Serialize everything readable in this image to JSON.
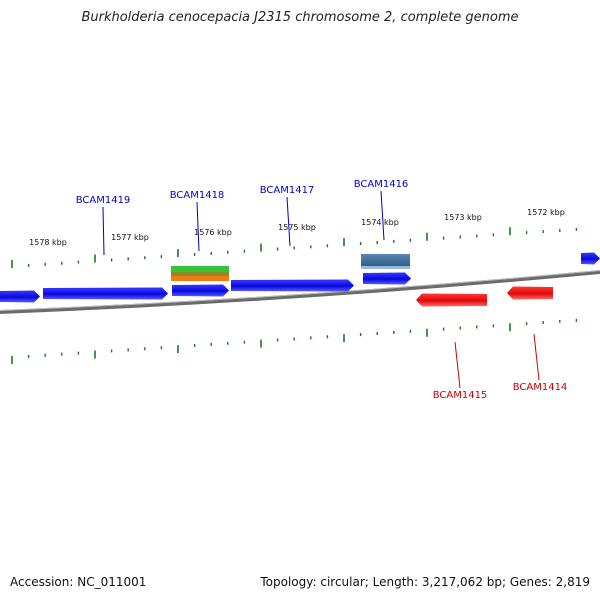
{
  "title": "Burkholderia cenocepacia J2315 chromosome 2, complete genome",
  "footer": {
    "accession": "Accession: NC_011001",
    "stats": "Topology: circular; Length: 3,217,062 bp; Genes: 2,819"
  },
  "colors": {
    "forward_gene": "#0a0ae6",
    "reverse_gene": "#e60a0a",
    "tick": "#1a7a1a",
    "backbone": "#808080",
    "forward_label": "#0000cc",
    "reverse_label": "#cc0000"
  },
  "scale_labels": [
    "1578 kbp",
    "1577 kbp",
    "1576 kbp",
    "1575 kbp",
    "1574 kbp",
    "1573 kbp",
    "1572 kbp"
  ],
  "forward_genes": [
    {
      "label": "",
      "kind": "cds"
    },
    {
      "label": "BCAM1419",
      "kind": "cds"
    },
    {
      "label": "BCAM1418",
      "kind": "cds"
    },
    {
      "label": "BCAM1417",
      "kind": "cds"
    },
    {
      "label": "BCAM1416",
      "kind": "cds"
    },
    {
      "label": "",
      "kind": "cds"
    }
  ],
  "reverse_genes": [
    {
      "label": "BCAM1415",
      "kind": "cds"
    },
    {
      "label": "BCAM1414",
      "kind": "cds"
    }
  ]
}
